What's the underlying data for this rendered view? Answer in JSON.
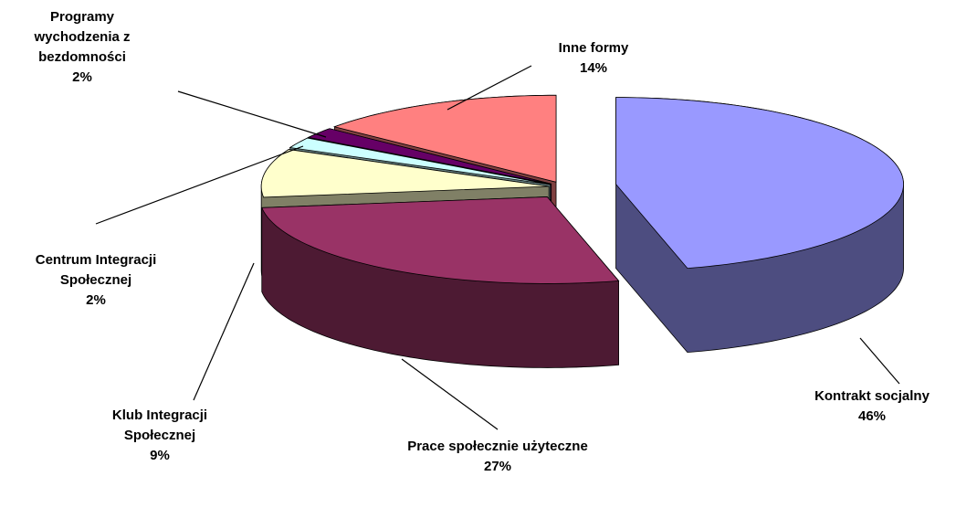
{
  "chart_data": {
    "type": "pie3d",
    "categories": [
      "Kontrakt socjalny",
      "Prace społecznie użyteczne",
      "Klub Integracji Społecznej",
      "Centrum Integracji Społecznej",
      "Programy wychodzenia z bezdomności",
      "Inne formy"
    ],
    "values": [
      46,
      27,
      9,
      2,
      2,
      14
    ],
    "value_labels": [
      "46%",
      "27%",
      "9%",
      "2%",
      "2%",
      "14%"
    ],
    "colors": [
      "#9999ff",
      "#993366",
      "#ffffcc",
      "#ccffff",
      "#660066",
      "#ff8080"
    ]
  }
}
